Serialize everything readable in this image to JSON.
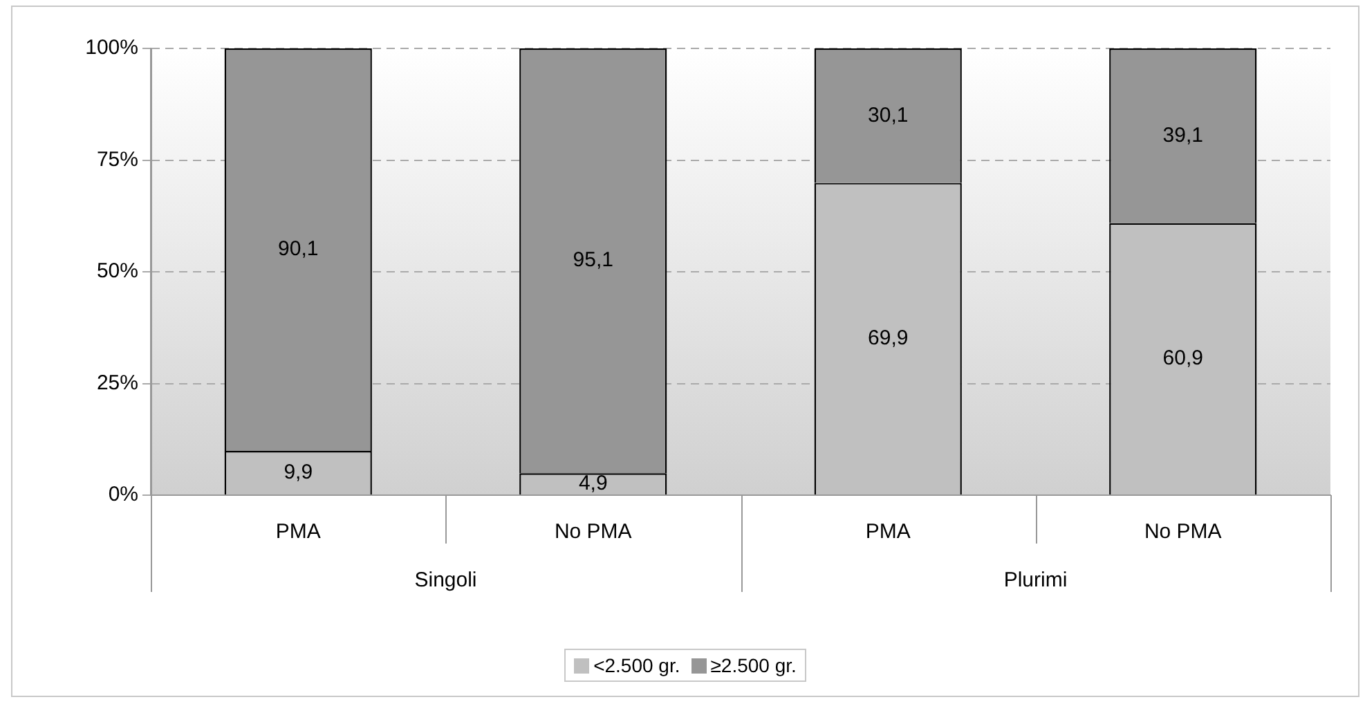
{
  "chart_data": {
    "type": "bar",
    "stacked": true,
    "categories": [
      "PMA",
      "No PMA",
      "PMA",
      "No PMA"
    ],
    "series": [
      {
        "name": "<2.500 gr.",
        "color": "#c0c0c0",
        "values": [
          9.9,
          4.9,
          69.9,
          60.9
        ],
        "value_labels": [
          "9,9",
          "4,9",
          "69,9",
          "60,9"
        ]
      },
      {
        "name": "≥2.500 gr.",
        "color": "#969696",
        "values": [
          90.1,
          95.1,
          30.1,
          39.1
        ],
        "value_labels": [
          "90,1",
          "95,1",
          "30,1",
          "39,1"
        ]
      }
    ],
    "ylim": [
      0,
      100
    ],
    "yticks": [
      {
        "value": 0,
        "label": "0%"
      },
      {
        "value": 25,
        "label": "25%"
      },
      {
        "value": 50,
        "label": "50%"
      },
      {
        "value": 75,
        "label": "75%"
      },
      {
        "value": 100,
        "label": "100%"
      }
    ],
    "grid": "y",
    "legend": "bottom",
    "annotations": [
      "Singoli",
      "Plurimi"
    ]
  }
}
